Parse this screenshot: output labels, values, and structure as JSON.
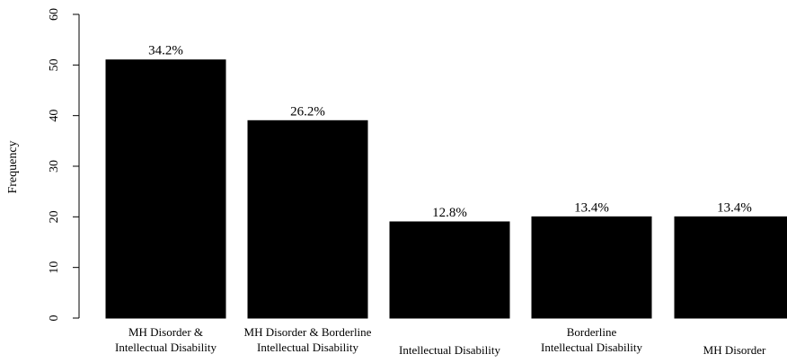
{
  "chart_data": {
    "type": "bar",
    "title": "",
    "xlabel": "",
    "ylabel": "Frequency",
    "ylim": [
      0,
      60
    ],
    "yticks": [
      0,
      10,
      20,
      30,
      40,
      50,
      60
    ],
    "grid": false,
    "legend": "none",
    "bar_color": "#000000",
    "categories": [
      [
        "MH Disorder &",
        "Intellectual Disability"
      ],
      [
        "MH Disorder & Borderline",
        "Intellectual Disability"
      ],
      [
        "Intellectual Disability"
      ],
      [
        "Borderline",
        "Intellectual Disability"
      ],
      [
        "MH Disorder"
      ]
    ],
    "values": [
      51,
      39,
      19,
      20,
      20
    ],
    "data_labels": [
      "34.2%",
      "26.2%",
      "12.8%",
      "13.4%",
      "13.4%"
    ]
  }
}
